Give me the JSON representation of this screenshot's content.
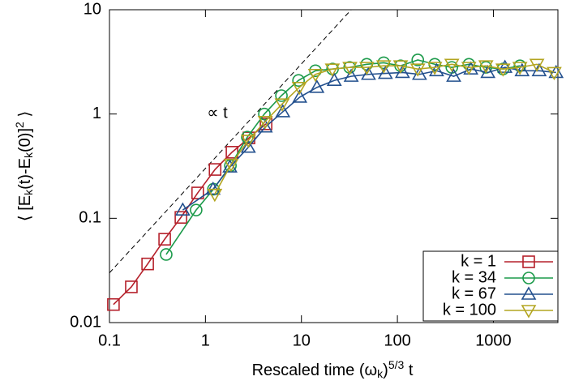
{
  "chart_data": {
    "type": "line",
    "log_x": true,
    "log_y": true,
    "xlabel": [
      {
        "text": "Rescaled time  (ω"
      },
      {
        "text": "k",
        "shift": "sub"
      },
      {
        "text": ")"
      },
      {
        "text": "5/3",
        "shift": "sup"
      },
      {
        "text": " t"
      }
    ],
    "ylabel": [
      {
        "text": "⟨ [E"
      },
      {
        "text": "k",
        "shift": "sub"
      },
      {
        "text": "(t)-E"
      },
      {
        "text": "k",
        "shift": "sub"
      },
      {
        "text": "(0)]"
      },
      {
        "text": "2",
        "shift": "sup"
      },
      {
        "text": " ⟩"
      }
    ],
    "xlim": [
      0.1,
      4700
    ],
    "ylim": [
      0.01,
      10
    ],
    "xticks": [
      0.1,
      1,
      10,
      100,
      1000
    ],
    "yticks": [
      0.01,
      0.1,
      1,
      10
    ],
    "legend": "lower right",
    "guide": {
      "label": "∝ t",
      "x": [
        0.1,
        33
      ],
      "values": [
        0.03,
        10
      ],
      "color": "#000000"
    },
    "series": [
      {
        "name": "k = 1",
        "color": "#b5212b",
        "marker": "square",
        "x": [
          0.11,
          0.169,
          0.25,
          0.376,
          0.555,
          0.83,
          1.26,
          1.89,
          2.84,
          4.28
        ],
        "values": [
          0.0149,
          0.022,
          0.0365,
          0.063,
          0.102,
          0.175,
          0.294,
          0.43,
          0.59,
          0.805
        ]
      },
      {
        "name": "k = 34",
        "color": "#1b9a4a",
        "marker": "circle",
        "x": [
          0.39,
          0.8,
          1.21,
          1.82,
          2.73,
          4.11,
          6.19,
          9.33,
          14,
          21.1,
          31.8,
          47.9,
          72,
          108,
          163,
          245,
          369,
          556,
          836,
          1259,
          1892
        ],
        "values": [
          0.045,
          0.12,
          0.19,
          0.32,
          0.6,
          1.0,
          1.5,
          2.1,
          2.6,
          2.7,
          2.8,
          3.0,
          3.1,
          2.9,
          3.3,
          3.0,
          2.8,
          3.0,
          2.8,
          2.7,
          2.9
        ]
      },
      {
        "name": "k = 67",
        "color": "#23508e",
        "marker": "triangle-up",
        "x": [
          0.58,
          1.2,
          1.8,
          2.8,
          4.2,
          6.4,
          9.6,
          14.5,
          22,
          33,
          50,
          75,
          113,
          170,
          256,
          386,
          582,
          877,
          1320,
          1990,
          3000,
          4500
        ],
        "values": [
          0.12,
          0.19,
          0.31,
          0.48,
          0.75,
          1.05,
          1.45,
          1.8,
          2.1,
          2.3,
          2.4,
          2.45,
          2.5,
          2.4,
          2.6,
          2.3,
          2.7,
          2.5,
          2.8,
          2.6,
          2.6,
          2.5
        ]
      },
      {
        "name": "k = 100",
        "color": "#b3a521",
        "marker": "triangle-down",
        "x": [
          1.25,
          1.85,
          2.8,
          4.2,
          6.3,
          9.5,
          14,
          21,
          32,
          48,
          72,
          108,
          163,
          245,
          369,
          556,
          836,
          1260,
          1890,
          2840,
          4300
        ],
        "values": [
          0.17,
          0.33,
          0.56,
          0.85,
          1.25,
          1.8,
          2.4,
          2.7,
          2.8,
          2.8,
          2.9,
          2.9,
          2.7,
          2.8,
          3.0,
          2.8,
          2.9,
          2.7,
          2.8,
          3.0,
          2.5
        ]
      }
    ]
  }
}
